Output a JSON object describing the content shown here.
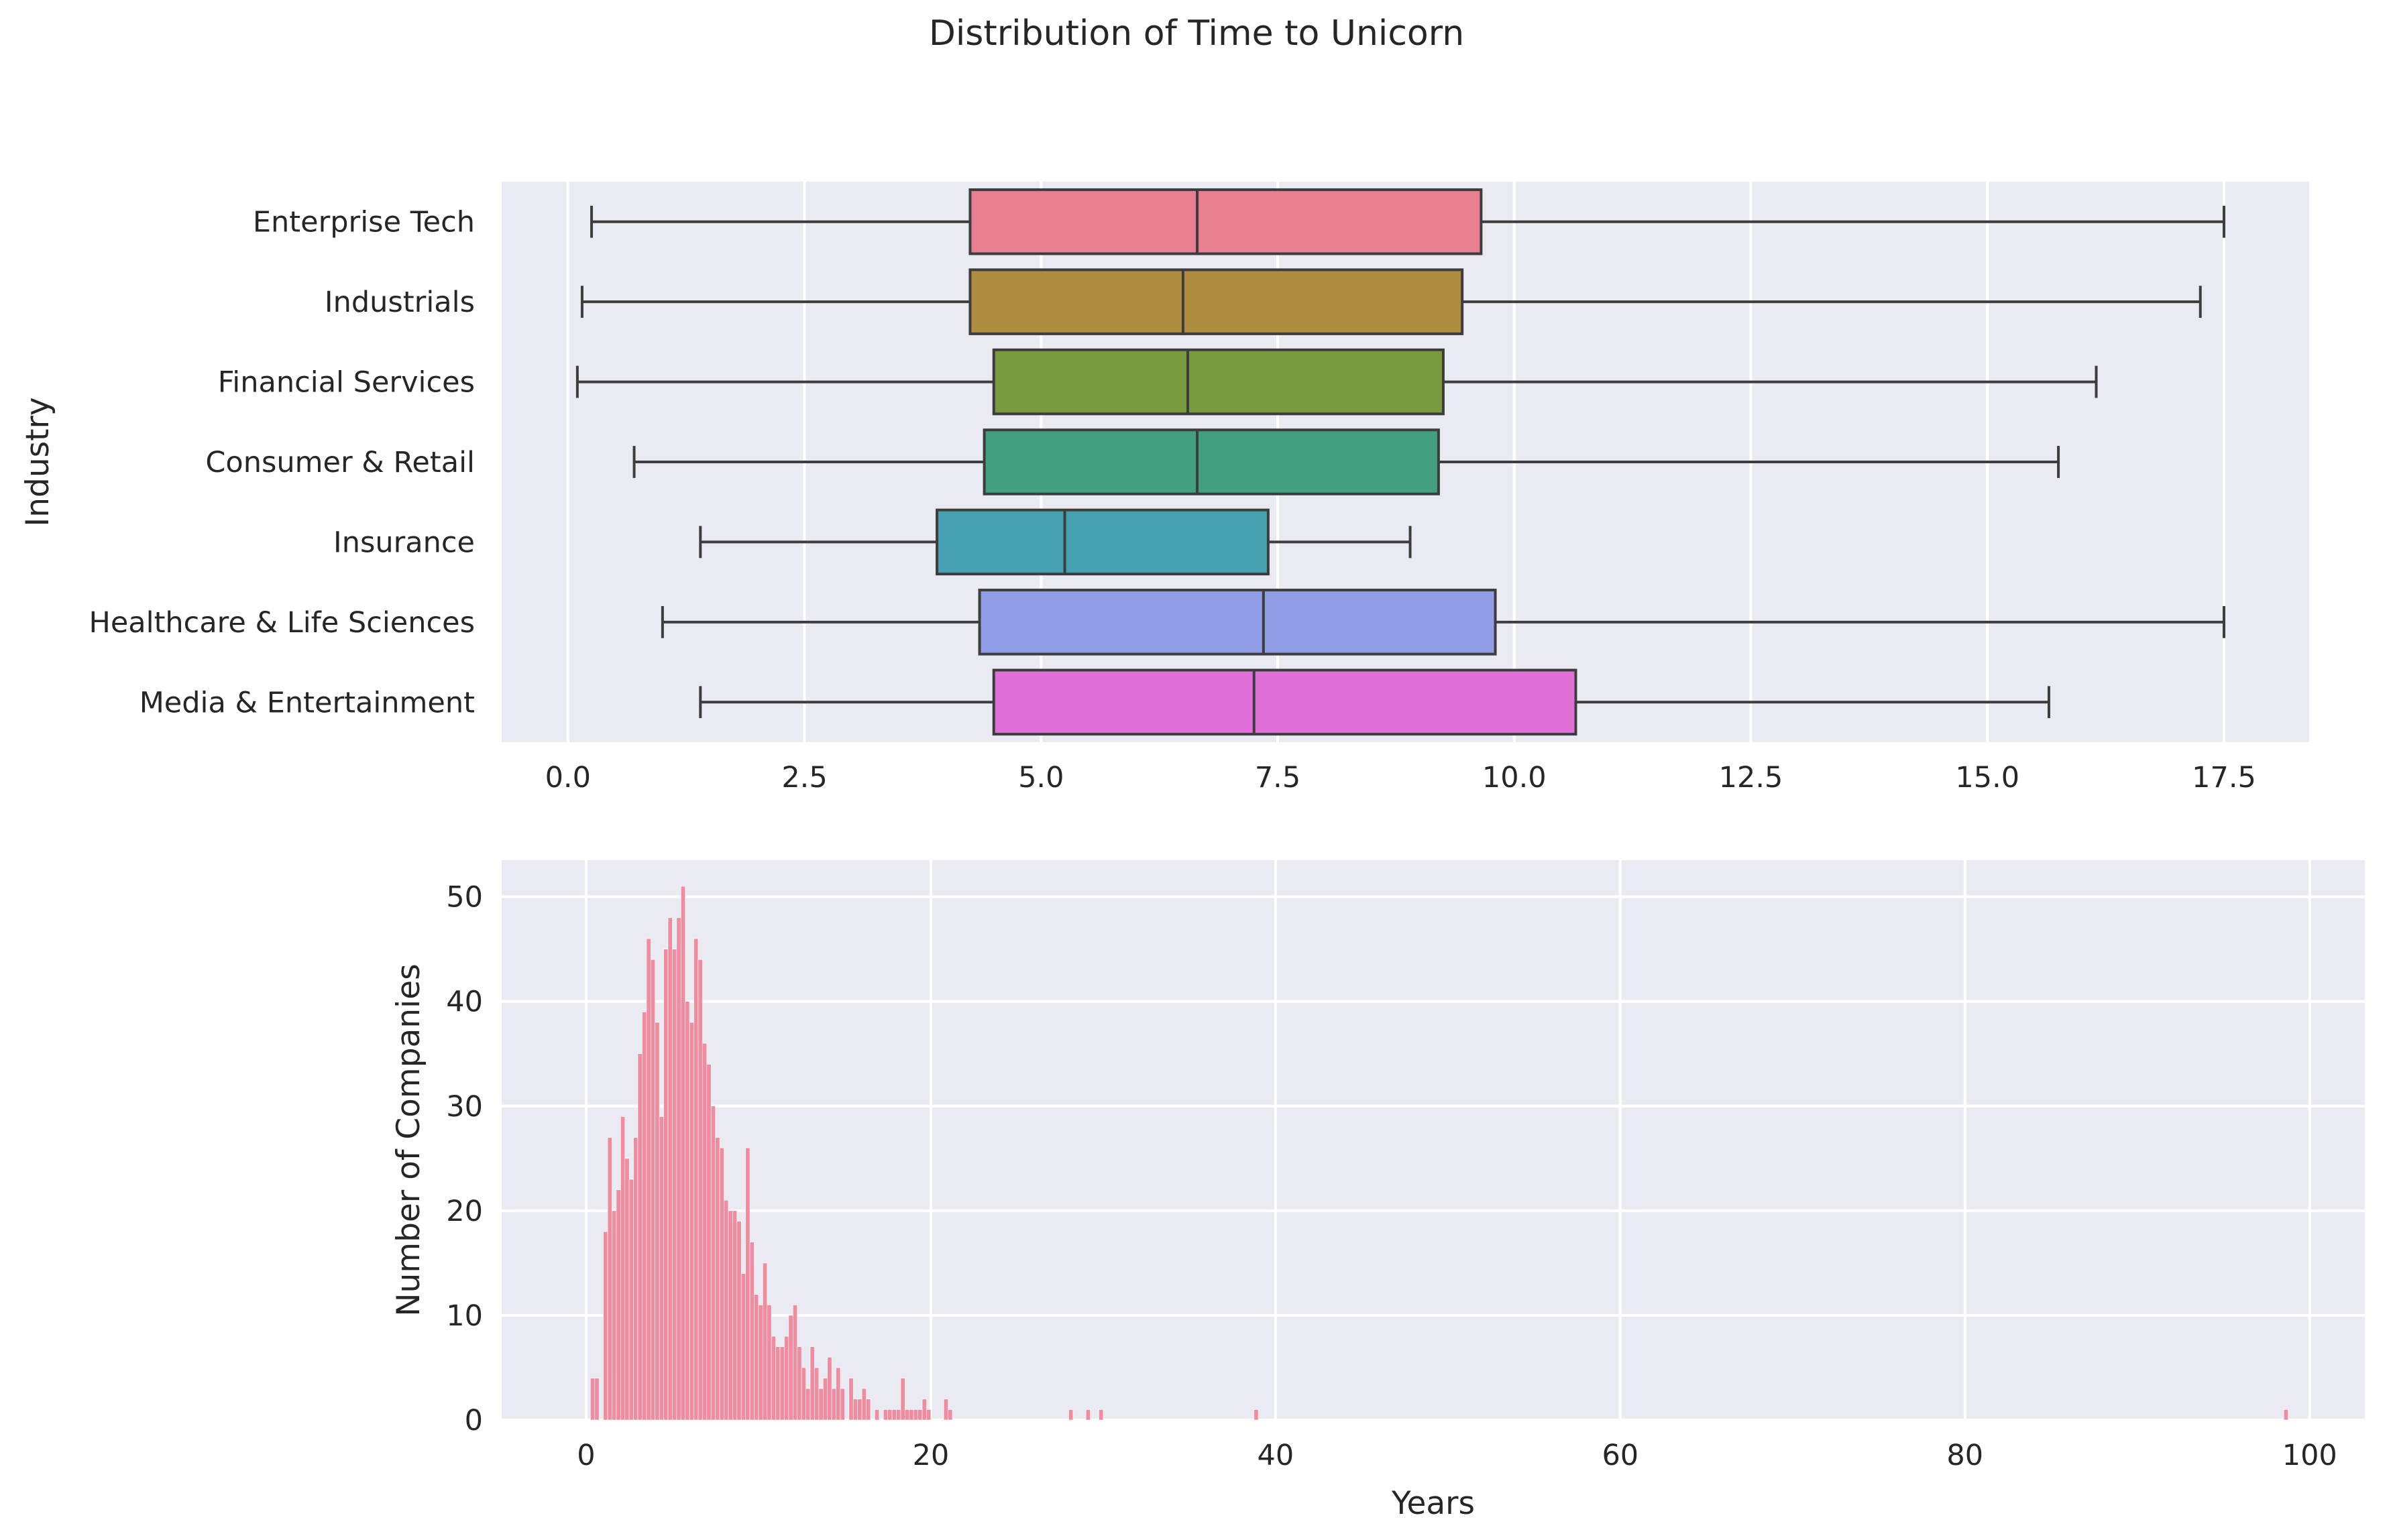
{
  "title": "Distribution of Time to Unicorn",
  "chart_data": [
    {
      "type": "box",
      "orientation": "horizontal",
      "ylabel": "Industry",
      "xlabel": "",
      "xlim": [
        -0.7,
        18.4
      ],
      "xticks": [
        0.0,
        2.5,
        5.0,
        7.5,
        10.0,
        12.5,
        15.0,
        17.5
      ],
      "xtick_labels": [
        "0.0",
        "2.5",
        "5.0",
        "7.5",
        "10.0",
        "12.5",
        "15.0",
        "17.5"
      ],
      "grid": true,
      "categories": [
        "Enterprise Tech",
        "Industrials",
        "Financial Services",
        "Consumer & Retail",
        "Insurance",
        "Healthcare & Life Sciences",
        "Media & Entertainment"
      ],
      "boxes": [
        {
          "category": "Enterprise Tech",
          "whisker_low": 0.25,
          "q1": 4.25,
          "median": 6.65,
          "q3": 9.65,
          "whisker_high": 17.5,
          "color": "#e77f91"
        },
        {
          "category": "Industrials",
          "whisker_low": 0.15,
          "q1": 4.25,
          "median": 6.5,
          "q3": 9.45,
          "whisker_high": 17.25,
          "color": "#b08c41"
        },
        {
          "category": "Financial Services",
          "whisker_low": 0.1,
          "q1": 4.5,
          "median": 6.55,
          "q3": 9.25,
          "whisker_high": 16.15,
          "color": "#7a9a40"
        },
        {
          "category": "Consumer & Retail",
          "whisker_low": 0.7,
          "q1": 4.4,
          "median": 6.65,
          "q3": 9.2,
          "whisker_high": 15.75,
          "color": "#42a080"
        },
        {
          "category": "Insurance",
          "whisker_low": 1.4,
          "q1": 3.9,
          "median": 5.25,
          "q3": 7.4,
          "whisker_high": 8.9,
          "color": "#45a0b0"
        },
        {
          "category": "Healthcare & Life Sciences",
          "whisker_low": 1.0,
          "q1": 4.35,
          "median": 7.35,
          "q3": 9.8,
          "whisker_high": 17.5,
          "color": "#8f9ee7"
        },
        {
          "category": "Media & Entertainment",
          "whisker_low": 1.4,
          "q1": 4.5,
          "median": 7.25,
          "q3": 10.65,
          "whisker_high": 15.65,
          "color": "#e06fd8"
        }
      ]
    },
    {
      "type": "histogram",
      "xlabel": "Years",
      "ylabel": "Number of Companies",
      "xlim": [
        -4.9,
        103.2
      ],
      "ylim": [
        0,
        53.5
      ],
      "xticks": [
        0,
        20,
        40,
        60,
        80,
        100
      ],
      "xtick_labels": [
        "0",
        "20",
        "40",
        "60",
        "80",
        "100"
      ],
      "yticks": [
        0,
        10,
        20,
        30,
        40,
        50
      ],
      "ytick_labels": [
        "0",
        "10",
        "20",
        "30",
        "40",
        "50"
      ],
      "grid": true,
      "bar_color": "#f08ca0",
      "bin_width": 0.25,
      "bins_start": 0.25,
      "counts": [
        4,
        4,
        0,
        18,
        27,
        20,
        22,
        29,
        25,
        23,
        27,
        35,
        39,
        46,
        44,
        38,
        29,
        45,
        48,
        45,
        48,
        51,
        40,
        38,
        46,
        44,
        36,
        34,
        30,
        27,
        26,
        21,
        20,
        20,
        19,
        14,
        26,
        17,
        12,
        11,
        15,
        11,
        8,
        7,
        7,
        8,
        10,
        11,
        7,
        5,
        3,
        7,
        5,
        3,
        4,
        6,
        3,
        5,
        3,
        0,
        4,
        2,
        2,
        3,
        2,
        0,
        1,
        0,
        1,
        1,
        1,
        1,
        4,
        1,
        1,
        1,
        1,
        2,
        1,
        0,
        0,
        0,
        2,
        1
      ],
      "outliers": [
        {
          "x": 28.0,
          "count": 1
        },
        {
          "x": 29.0,
          "count": 1
        },
        {
          "x": 29.75,
          "count": 1
        },
        {
          "x": 38.75,
          "count": 1
        },
        {
          "x": 98.5,
          "count": 1
        }
      ]
    }
  ]
}
